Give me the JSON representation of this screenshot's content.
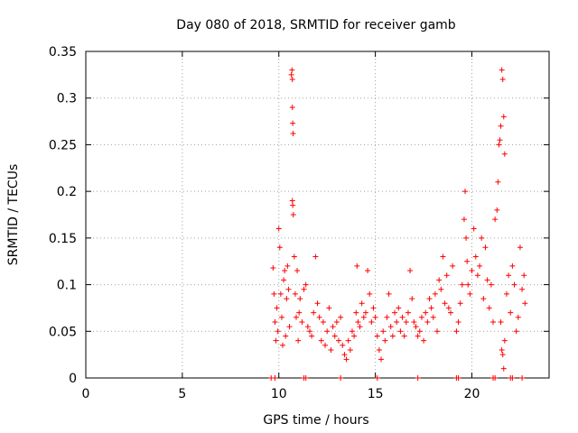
{
  "chart_data": {
    "type": "scatter",
    "title": "Day 080 of 2018, SRMTID for receiver gamb",
    "xlabel": "GPS time / hours",
    "ylabel": "SRMTID / TECUs",
    "xlim": [
      0,
      24
    ],
    "ylim": [
      0,
      0.35
    ],
    "xticks": [
      "0",
      "5",
      "10",
      "15",
      "20"
    ],
    "xtick_values": [
      0,
      5,
      10,
      15,
      20
    ],
    "yticks": [
      "0",
      "0.05",
      "0.1",
      "0.15",
      "0.2",
      "0.25",
      "0.3",
      "0.35"
    ],
    "ytick_values": [
      0,
      0.05,
      0.1,
      0.15,
      0.2,
      0.25,
      0.3,
      0.35
    ],
    "grid": true,
    "marker": "+",
    "color": "#ff0000",
    "series": [
      {
        "name": "SRMTID",
        "points": [
          [
            9.6,
            0.0
          ],
          [
            9.8,
            0.0
          ],
          [
            11.3,
            0.0
          ],
          [
            11.4,
            0.0
          ],
          [
            13.2,
            0.0
          ],
          [
            15.1,
            0.0
          ],
          [
            17.2,
            0.0
          ],
          [
            19.2,
            0.0
          ],
          [
            19.3,
            0.0
          ],
          [
            21.1,
            0.0
          ],
          [
            21.2,
            0.0
          ],
          [
            22.0,
            0.0
          ],
          [
            22.1,
            0.0
          ],
          [
            22.6,
            0.0
          ],
          [
            9.7,
            0.118
          ],
          [
            9.75,
            0.09
          ],
          [
            9.8,
            0.06
          ],
          [
            9.85,
            0.04
          ],
          [
            9.9,
            0.075
          ],
          [
            9.95,
            0.05
          ],
          [
            10.0,
            0.16
          ],
          [
            10.05,
            0.14
          ],
          [
            10.1,
            0.09
          ],
          [
            10.15,
            0.065
          ],
          [
            10.2,
            0.035
          ],
          [
            10.25,
            0.105
          ],
          [
            10.3,
            0.115
          ],
          [
            10.35,
            0.045
          ],
          [
            10.4,
            0.085
          ],
          [
            10.45,
            0.12
          ],
          [
            10.5,
            0.095
          ],
          [
            10.55,
            0.055
          ],
          [
            10.65,
            0.325
          ],
          [
            10.68,
            0.33
          ],
          [
            10.7,
            0.32
          ],
          [
            10.7,
            0.29
          ],
          [
            10.72,
            0.273
          ],
          [
            10.74,
            0.262
          ],
          [
            10.7,
            0.19
          ],
          [
            10.72,
            0.185
          ],
          [
            10.75,
            0.175
          ],
          [
            10.8,
            0.13
          ],
          [
            10.85,
            0.09
          ],
          [
            10.9,
            0.065
          ],
          [
            10.95,
            0.115
          ],
          [
            11.0,
            0.04
          ],
          [
            11.05,
            0.07
          ],
          [
            11.1,
            0.085
          ],
          [
            11.2,
            0.06
          ],
          [
            11.3,
            0.095
          ],
          [
            11.4,
            0.1
          ],
          [
            11.5,
            0.055
          ],
          [
            11.6,
            0.05
          ],
          [
            11.7,
            0.045
          ],
          [
            11.8,
            0.07
          ],
          [
            11.9,
            0.13
          ],
          [
            12.0,
            0.08
          ],
          [
            12.1,
            0.065
          ],
          [
            12.2,
            0.04
          ],
          [
            12.3,
            0.06
          ],
          [
            12.4,
            0.035
          ],
          [
            12.5,
            0.05
          ],
          [
            12.6,
            0.075
          ],
          [
            12.7,
            0.03
          ],
          [
            12.8,
            0.055
          ],
          [
            12.9,
            0.045
          ],
          [
            13.0,
            0.06
          ],
          [
            13.1,
            0.04
          ],
          [
            13.2,
            0.065
          ],
          [
            13.3,
            0.035
          ],
          [
            13.4,
            0.025
          ],
          [
            13.5,
            0.02
          ],
          [
            13.6,
            0.04
          ],
          [
            13.7,
            0.03
          ],
          [
            13.8,
            0.05
          ],
          [
            13.9,
            0.045
          ],
          [
            14.0,
            0.07
          ],
          [
            14.05,
            0.12
          ],
          [
            14.1,
            0.06
          ],
          [
            14.2,
            0.055
          ],
          [
            14.3,
            0.08
          ],
          [
            14.4,
            0.065
          ],
          [
            14.5,
            0.07
          ],
          [
            14.6,
            0.115
          ],
          [
            14.7,
            0.09
          ],
          [
            14.8,
            0.06
          ],
          [
            14.9,
            0.075
          ],
          [
            15.0,
            0.065
          ],
          [
            15.1,
            0.045
          ],
          [
            15.2,
            0.03
          ],
          [
            15.3,
            0.02
          ],
          [
            15.4,
            0.05
          ],
          [
            15.5,
            0.04
          ],
          [
            15.6,
            0.065
          ],
          [
            15.7,
            0.09
          ],
          [
            15.8,
            0.055
          ],
          [
            15.9,
            0.045
          ],
          [
            16.0,
            0.07
          ],
          [
            16.1,
            0.06
          ],
          [
            16.2,
            0.075
          ],
          [
            16.3,
            0.05
          ],
          [
            16.4,
            0.065
          ],
          [
            16.5,
            0.045
          ],
          [
            16.6,
            0.06
          ],
          [
            16.7,
            0.07
          ],
          [
            16.8,
            0.115
          ],
          [
            16.9,
            0.085
          ],
          [
            17.0,
            0.06
          ],
          [
            17.1,
            0.055
          ],
          [
            17.2,
            0.045
          ],
          [
            17.3,
            0.05
          ],
          [
            17.4,
            0.065
          ],
          [
            17.5,
            0.04
          ],
          [
            17.6,
            0.07
          ],
          [
            17.7,
            0.06
          ],
          [
            17.8,
            0.085
          ],
          [
            17.9,
            0.075
          ],
          [
            18.0,
            0.065
          ],
          [
            18.1,
            0.09
          ],
          [
            18.2,
            0.05
          ],
          [
            18.3,
            0.105
          ],
          [
            18.4,
            0.095
          ],
          [
            18.5,
            0.13
          ],
          [
            18.6,
            0.08
          ],
          [
            18.7,
            0.11
          ],
          [
            18.8,
            0.075
          ],
          [
            18.9,
            0.07
          ],
          [
            19.0,
            0.12
          ],
          [
            19.2,
            0.05
          ],
          [
            19.3,
            0.06
          ],
          [
            19.4,
            0.08
          ],
          [
            19.5,
            0.1
          ],
          [
            19.6,
            0.17
          ],
          [
            19.65,
            0.2
          ],
          [
            19.7,
            0.15
          ],
          [
            19.75,
            0.125
          ],
          [
            19.8,
            0.1
          ],
          [
            19.9,
            0.09
          ],
          [
            20.0,
            0.115
          ],
          [
            20.1,
            0.16
          ],
          [
            20.2,
            0.13
          ],
          [
            20.3,
            0.11
          ],
          [
            20.4,
            0.12
          ],
          [
            20.5,
            0.15
          ],
          [
            20.6,
            0.085
          ],
          [
            20.7,
            0.14
          ],
          [
            20.8,
            0.105
          ],
          [
            20.9,
            0.075
          ],
          [
            21.0,
            0.1
          ],
          [
            21.1,
            0.06
          ],
          [
            21.2,
            0.17
          ],
          [
            21.3,
            0.18
          ],
          [
            21.35,
            0.21
          ],
          [
            21.4,
            0.25
          ],
          [
            21.45,
            0.255
          ],
          [
            21.5,
            0.27
          ],
          [
            21.55,
            0.33
          ],
          [
            21.6,
            0.32
          ],
          [
            21.65,
            0.28
          ],
          [
            21.7,
            0.24
          ],
          [
            21.5,
            0.06
          ],
          [
            21.55,
            0.03
          ],
          [
            21.6,
            0.025
          ],
          [
            21.65,
            0.01
          ],
          [
            21.7,
            0.04
          ],
          [
            21.8,
            0.09
          ],
          [
            21.9,
            0.11
          ],
          [
            22.0,
            0.07
          ],
          [
            22.1,
            0.12
          ],
          [
            22.2,
            0.1
          ],
          [
            22.3,
            0.05
          ],
          [
            22.4,
            0.065
          ],
          [
            22.5,
            0.14
          ],
          [
            22.6,
            0.095
          ],
          [
            22.7,
            0.11
          ],
          [
            22.75,
            0.08
          ]
        ]
      }
    ]
  }
}
